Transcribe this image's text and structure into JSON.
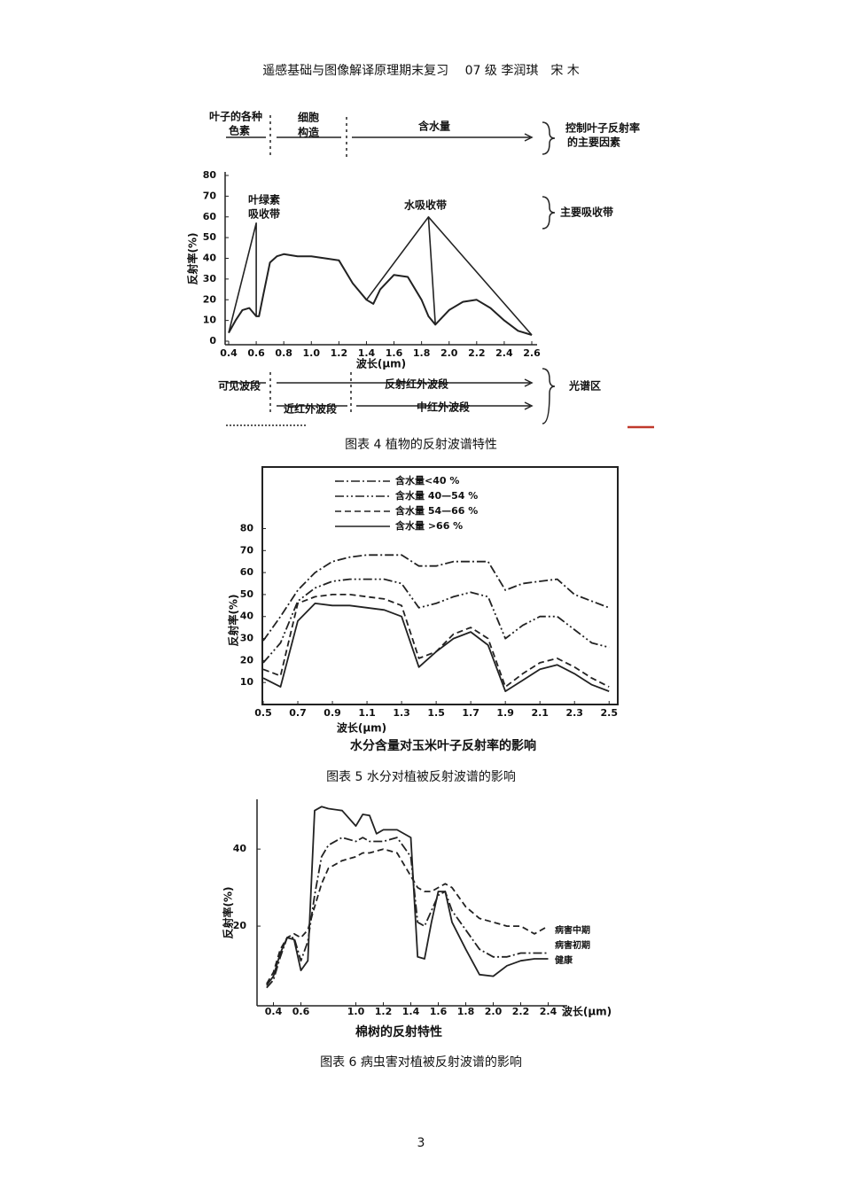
{
  "header": "遥感基础与图像解译原理期末复习　 07 级 李润琪　宋 木",
  "captions": [
    "图表 4 植物的反射波谱特性",
    "图表 5 水分对植被反射波谱的影响",
    "图表 6 病虫害对植被反射波谱的影响"
  ],
  "page_number": "3",
  "chart_data": [
    {
      "type": "line",
      "xlabel": "波长(μm)",
      "ylabel": "反射率(%)",
      "annotations": [
        "叶子的各种",
        "色素",
        "细胞",
        "构造",
        "含水量",
        "控制叶子反射率",
        "的主要因素",
        "叶绿素",
        "吸收带",
        "水吸收带",
        "主要吸收带",
        "可见波段",
        "反射红外波段",
        "光谱区",
        "近红外波段",
        "中红外波段"
      ],
      "x": [
        0.4,
        0.45,
        0.5,
        0.55,
        0.6,
        0.62,
        0.65,
        0.7,
        0.75,
        0.8,
        0.9,
        1.0,
        1.1,
        1.2,
        1.3,
        1.4,
        1.45,
        1.5,
        1.6,
        1.7,
        1.8,
        1.85,
        1.9,
        2.0,
        2.1,
        2.2,
        2.3,
        2.4,
        2.5,
        2.6
      ],
      "values": [
        4,
        10,
        15,
        16,
        12,
        12,
        22,
        38,
        41,
        42,
        41,
        41,
        40,
        39,
        28,
        20,
        18,
        25,
        32,
        31,
        20,
        12,
        8,
        15,
        19,
        20,
        16,
        10,
        5,
        3
      ],
      "color": "#222222",
      "absorption_bands": [
        {
          "x": [
            0.4,
            0.6,
            0.6
          ],
          "values": [
            4,
            57,
            12
          ]
        },
        {
          "x": [
            1.4,
            1.85,
            1.9
          ],
          "values": [
            20,
            60,
            8
          ]
        },
        {
          "x": [
            1.85,
            2.6
          ],
          "values": [
            60,
            3
          ]
        }
      ],
      "xlim": [
        0.4,
        2.6
      ],
      "ylim": [
        0,
        80
      ],
      "xticks": [
        0.4,
        0.6,
        0.8,
        {
          "value": 1,
          "label": "1.0"
        },
        1.2,
        1.4,
        1.6,
        1.8,
        {
          "value": 2,
          "label": "2.0"
        },
        2.2,
        2.4,
        2.6
      ],
      "yticks": [
        0,
        10,
        20,
        30,
        40,
        50,
        60,
        70,
        80
      ]
    },
    {
      "type": "line",
      "title": "水分含量对玉米叶子反射率的影响",
      "xlabel": "波长(μm)",
      "ylabel": "反射率(%)",
      "x": [
        0.5,
        0.6,
        0.7,
        0.8,
        0.9,
        1.0,
        1.1,
        1.2,
        1.3,
        1.4,
        1.5,
        1.6,
        1.7,
        1.8,
        1.9,
        2.0,
        2.1,
        2.2,
        2.3,
        2.4,
        2.5
      ],
      "series": [
        {
          "name": "含水量<40 %",
          "color": "#222222",
          "style": "dash-dot",
          "values": [
            29,
            40,
            52,
            60,
            65,
            67,
            68,
            68,
            68,
            63,
            63,
            65,
            65,
            65,
            52,
            55,
            56,
            57,
            50,
            47,
            44
          ]
        },
        {
          "name": "含水量 40—54 %",
          "color": "#222222",
          "style": "dash-dot-dot",
          "values": [
            19,
            28,
            47,
            53,
            56,
            57,
            57,
            57,
            55,
            44,
            46,
            49,
            51,
            49,
            30,
            36,
            40,
            40,
            34,
            28,
            26
          ]
        },
        {
          "name": "含水量 54—66 %",
          "color": "#222222",
          "style": "dashed",
          "values": [
            16,
            13,
            46,
            49,
            50,
            50,
            49,
            48,
            45,
            21,
            24,
            32,
            35,
            30,
            8,
            14,
            19,
            21,
            17,
            12,
            8
          ]
        },
        {
          "name": "含水量 >66 %",
          "color": "#222222",
          "style": "solid",
          "values": [
            12,
            8,
            38,
            46,
            45,
            45,
            44,
            43,
            40,
            17,
            24,
            30,
            33,
            27,
            6,
            11,
            16,
            18,
            14,
            9,
            6
          ]
        }
      ],
      "xlim": [
        0.5,
        2.55
      ],
      "ylim": [
        0,
        108
      ],
      "xticks": [
        0.5,
        0.7,
        0.9,
        1.1,
        1.3,
        1.5,
        1.7,
        1.9,
        2.1,
        2.3,
        2.5
      ],
      "yticks": [
        10,
        20,
        30,
        40,
        50,
        60,
        70,
        80
      ]
    },
    {
      "type": "line",
      "title": "棉树的反射特性",
      "xlabel": "波长(μm)",
      "ylabel": "反射率(%)",
      "x": [
        0.35,
        0.4,
        0.45,
        0.5,
        0.55,
        0.6,
        0.65,
        0.7,
        0.75,
        0.8,
        0.9,
        1.0,
        1.05,
        1.1,
        1.15,
        1.2,
        1.3,
        1.4,
        1.45,
        1.5,
        1.55,
        1.6,
        1.65,
        1.7,
        1.8,
        1.9,
        2.0,
        2.1,
        2.2,
        2.3,
        2.4
      ],
      "series": [
        {
          "name": "病害中期",
          "color": "#222222",
          "style": "dashed",
          "values": [
            5,
            8,
            14,
            17,
            18,
            17,
            19,
            25,
            31,
            35,
            37,
            38,
            39,
            39,
            39.5,
            40,
            39,
            33,
            30,
            29,
            29,
            30,
            31,
            30,
            25,
            22,
            21,
            20,
            20,
            18,
            20
          ]
        },
        {
          "name": "病害初期",
          "color": "#222222",
          "style": "dash-dot",
          "values": [
            4,
            6,
            12,
            17,
            17,
            11,
            16,
            28,
            38,
            41,
            43,
            42,
            43,
            42,
            42,
            42,
            43,
            38,
            21,
            20,
            24,
            28,
            29,
            24,
            19,
            14,
            12,
            12,
            13,
            13,
            13
          ]
        },
        {
          "name": "健康",
          "color": "#222222",
          "style": "solid",
          "values": [
            4.6,
            7,
            13,
            17,
            16.5,
            8.5,
            11,
            50,
            51,
            50.5,
            50,
            46,
            49,
            48.7,
            44,
            45,
            45,
            43,
            12,
            11.5,
            21,
            29,
            29,
            21,
            14,
            7.4,
            7,
            9.7,
            11,
            11.5,
            11.5
          ]
        }
      ],
      "xlim": [
        0.3,
        2.5
      ],
      "ylim": [
        0,
        52
      ],
      "xticks": [
        0.4,
        0.6,
        {
          "value": 1,
          "label": "1.0"
        },
        1.2,
        1.4,
        1.6,
        1.8,
        {
          "value": 2,
          "label": "2.0"
        },
        2.2,
        2.4
      ],
      "yticks": [
        20,
        40
      ]
    }
  ]
}
